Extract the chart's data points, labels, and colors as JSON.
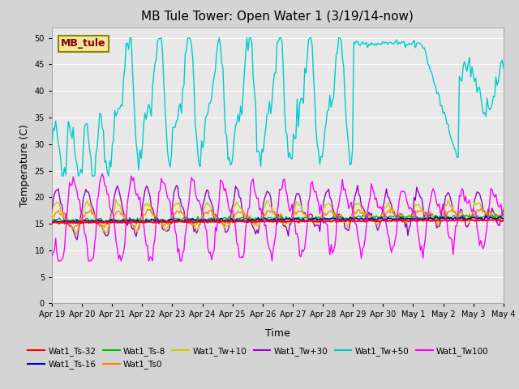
{
  "title": "MB Tule Tower: Open Water 1 (3/19/14-now)",
  "xlabel": "Time",
  "ylabel": "Temperature (C)",
  "ylim": [
    0,
    52
  ],
  "yticks": [
    0,
    5,
    10,
    15,
    20,
    25,
    30,
    35,
    40,
    45,
    50
  ],
  "background_color": "#d4d4d4",
  "plot_bg_color": "#e8e8e8",
  "legend_label": "MB_tule",
  "xtick_days": [
    0,
    1,
    2,
    3,
    4,
    5,
    6,
    7,
    8,
    9,
    10,
    11,
    12,
    13,
    14,
    15
  ],
  "xtick_labels": [
    "Apr 19",
    "Apr 20",
    "Apr 21",
    "Apr 22",
    "Apr 23",
    "Apr 24",
    "Apr 25",
    "Apr 26",
    "Apr 27",
    "Apr 28",
    "Apr 29",
    "Apr 30",
    "May 1",
    "May 2",
    "May 3",
    "May 4"
  ],
  "colors": {
    "Ts32": "#ff0000",
    "Ts16": "#0000cc",
    "Ts8": "#00bb00",
    "Ts0": "#ff8800",
    "Tw10": "#cccc00",
    "Tw30": "#9900cc",
    "Tw50": "#00cccc",
    "Tw100": "#ff00ff"
  }
}
